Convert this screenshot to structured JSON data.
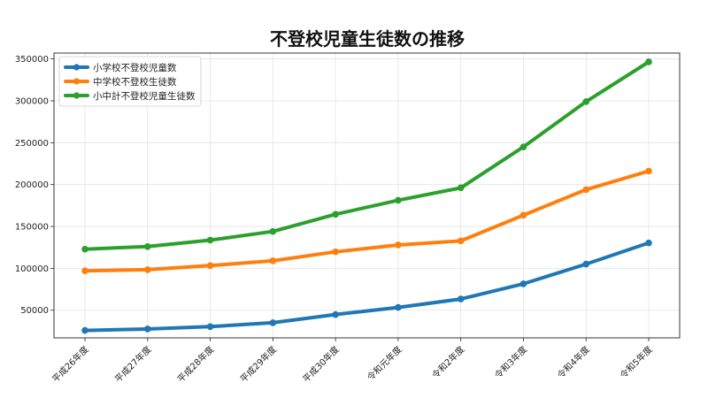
{
  "chart_data": {
    "type": "line",
    "title": "不登校児童生徒数の推移",
    "xlabel": "",
    "ylabel": "",
    "categories": [
      "平成26年度",
      "平成27年度",
      "平成28年度",
      "平成29年度",
      "平成30年度",
      "令和元年度",
      "令和2年度",
      "令和3年度",
      "令和4年度",
      "令和5年度"
    ],
    "ylim": [
      17000,
      357000
    ],
    "yticks": [
      50000,
      100000,
      150000,
      200000,
      250000,
      300000,
      350000
    ],
    "grid": true,
    "legend_position": "top-left",
    "series": [
      {
        "name": "小学校不登校児童数",
        "color": "#1f77b4",
        "values": [
          25864,
          27583,
          30448,
          35032,
          44841,
          53350,
          63350,
          81498,
          105112,
          130370
        ]
      },
      {
        "name": "中学校不登校生徒数",
        "color": "#ff7f0e",
        "values": [
          97033,
          98408,
          103235,
          108999,
          119687,
          127922,
          132777,
          163442,
          193936,
          216112
        ]
      },
      {
        "name": "小中計不登校児童生徒数",
        "color": "#2ca02c",
        "values": [
          122897,
          125991,
          133683,
          144031,
          164528,
          181272,
          196127,
          244940,
          299048,
          346482
        ]
      }
    ]
  }
}
